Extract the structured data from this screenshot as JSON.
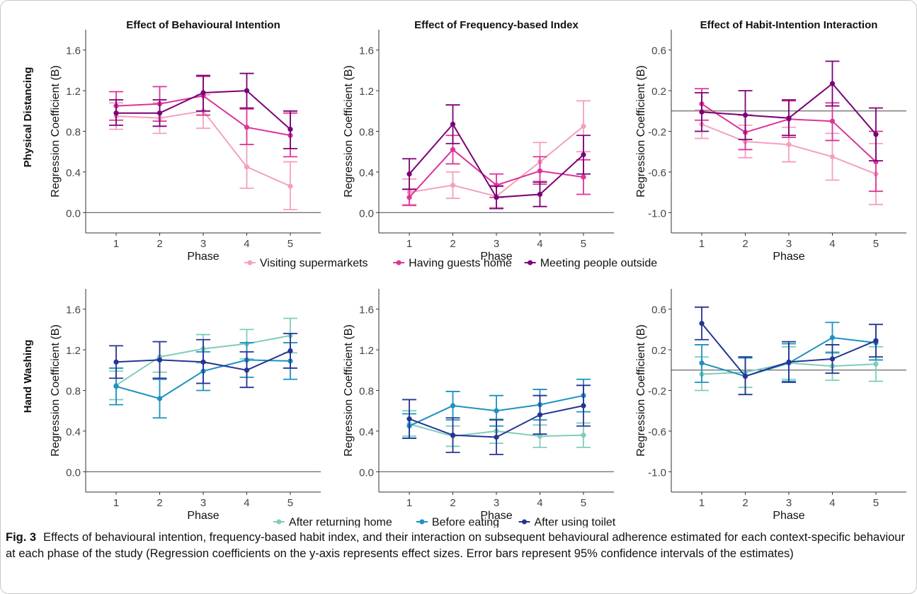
{
  "figure": {
    "label": "Fig. 3",
    "caption": "Effects of behavioural intention, frequency-based habit index, and their interaction on subsequent behavioural adherence estimated for each context-specific behaviour at each phase of the study (Regression coefficients on the y-axis represents effect sizes. Error bars represent 95% confidence intervals of the estimates)"
  },
  "column_titles": [
    "Effect of Behavioural Intention",
    "Effect of Frequency-based Index",
    "Effect of Habit-Intention Interaction"
  ],
  "row_titles": [
    "Physical Distancing",
    "Hand Washing"
  ],
  "legends": [
    {
      "items": [
        {
          "label": "Visiting supermarkets",
          "color": "#f4a0bf"
        },
        {
          "label": "Having guests home",
          "color": "#dd3497"
        },
        {
          "label": "Meeting people outside",
          "color": "#7a0177"
        }
      ]
    },
    {
      "items": [
        {
          "label": "After returning home",
          "color": "#7fcdbb"
        },
        {
          "label": "Before eating",
          "color": "#1d91c0"
        },
        {
          "label": "After using toilet",
          "color": "#253494"
        }
      ]
    }
  ],
  "chart_data": [
    {
      "type": "line",
      "title": "Effect of Behavioural Intention",
      "row": "Physical Distancing",
      "xlabel": "Phase",
      "ylabel": "Regression Coefficient (B)",
      "x": [
        1,
        2,
        3,
        4,
        5
      ],
      "xlim": [
        0.3,
        5.7
      ],
      "ylim": [
        -0.2,
        1.8
      ],
      "yticks": [
        0.0,
        0.4,
        0.8,
        1.2,
        1.6
      ],
      "ytick_labels": [
        "0.0",
        "0.4",
        "0.8",
        "1.2",
        "1.6"
      ],
      "ref_line": 0.0,
      "series": [
        {
          "name": "Visiting supermarkets",
          "color": "#f4a0bf",
          "values": [
            0.95,
            0.93,
            1.0,
            0.45,
            0.26
          ],
          "lower": [
            0.82,
            0.78,
            0.83,
            0.24,
            0.03
          ],
          "upper": [
            1.08,
            1.08,
            1.16,
            0.67,
            0.5
          ]
        },
        {
          "name": "Having guests home",
          "color": "#dd3497",
          "values": [
            1.05,
            1.07,
            1.15,
            0.84,
            0.76
          ],
          "lower": [
            0.91,
            0.9,
            0.96,
            0.67,
            0.55
          ],
          "upper": [
            1.19,
            1.24,
            1.34,
            1.02,
            0.98
          ]
        },
        {
          "name": "Meeting people outside",
          "color": "#7a0177",
          "values": [
            0.98,
            0.98,
            1.18,
            1.2,
            0.82
          ],
          "lower": [
            0.86,
            0.85,
            1.0,
            1.03,
            0.63
          ],
          "upper": [
            1.11,
            1.11,
            1.35,
            1.37,
            1.0
          ]
        }
      ]
    },
    {
      "type": "line",
      "title": "Effect of Frequency-based Index",
      "row": "Physical Distancing",
      "xlabel": "Phase",
      "ylabel": "Regression Coefficient (B)",
      "x": [
        1,
        2,
        3,
        4,
        5
      ],
      "xlim": [
        0.3,
        5.7
      ],
      "ylim": [
        -0.2,
        1.8
      ],
      "yticks": [
        0.0,
        0.4,
        0.8,
        1.2,
        1.6
      ],
      "ytick_labels": [
        "0.0",
        "0.4",
        "0.8",
        "1.2",
        "1.6"
      ],
      "ref_line": 0.0,
      "series": [
        {
          "name": "Visiting supermarkets",
          "color": "#f4a0bf",
          "values": [
            0.2,
            0.27,
            0.16,
            0.5,
            0.85
          ],
          "lower": [
            0.08,
            0.14,
            0.05,
            0.31,
            0.6
          ],
          "upper": [
            0.33,
            0.4,
            0.27,
            0.69,
            1.1
          ]
        },
        {
          "name": "Having guests home",
          "color": "#dd3497",
          "values": [
            0.15,
            0.62,
            0.27,
            0.41,
            0.35
          ],
          "lower": [
            0.07,
            0.48,
            0.15,
            0.28,
            0.18
          ],
          "upper": [
            0.23,
            0.76,
            0.38,
            0.55,
            0.52
          ]
        },
        {
          "name": "Meeting people outside",
          "color": "#7a0177",
          "values": [
            0.38,
            0.87,
            0.15,
            0.18,
            0.57
          ],
          "lower": [
            0.23,
            0.68,
            0.04,
            0.06,
            0.38
          ],
          "upper": [
            0.53,
            1.06,
            0.26,
            0.3,
            0.76
          ]
        }
      ]
    },
    {
      "type": "line",
      "title": "Effect of Habit-Intention Interaction",
      "row": "Physical Distancing",
      "xlabel": "Phase",
      "ylabel": "Regression Coefficient (B)",
      "x": [
        1,
        2,
        3,
        4,
        5
      ],
      "xlim": [
        0.3,
        5.7
      ],
      "ylim": [
        -1.2,
        0.8
      ],
      "yticks": [
        -1.0,
        -0.6,
        -0.2,
        0.2,
        0.6
      ],
      "ytick_labels": [
        "-1.0",
        "-0.6",
        "-0.2",
        "0.2",
        "0.6"
      ],
      "ref_line": 0.0,
      "series": [
        {
          "name": "Visiting supermarkets",
          "color": "#f4a0bf",
          "values": [
            -0.13,
            -0.3,
            -0.33,
            -0.45,
            -0.62
          ],
          "lower": [
            -0.27,
            -0.46,
            -0.5,
            -0.68,
            -0.92
          ],
          "upper": [
            0.01,
            -0.14,
            -0.16,
            -0.22,
            -0.32
          ]
        },
        {
          "name": "Having guests home",
          "color": "#dd3497",
          "values": [
            0.07,
            -0.21,
            -0.08,
            -0.1,
            -0.5
          ],
          "lower": [
            -0.09,
            -0.38,
            -0.26,
            -0.29,
            -0.79
          ],
          "upper": [
            0.22,
            -0.04,
            0.1,
            0.08,
            -0.2
          ]
        },
        {
          "name": "Meeting people outside",
          "color": "#7a0177",
          "values": [
            -0.01,
            -0.04,
            -0.07,
            0.27,
            -0.23
          ],
          "lower": [
            -0.2,
            -0.28,
            -0.24,
            0.05,
            -0.49
          ],
          "upper": [
            0.18,
            0.2,
            0.11,
            0.49,
            0.03
          ]
        }
      ]
    },
    {
      "type": "line",
      "title": "Effect of Behavioural Intention",
      "row": "Hand Washing",
      "xlabel": "Phase",
      "ylabel": "Regression Coefficient (B)",
      "x": [
        1,
        2,
        3,
        4,
        5
      ],
      "xlim": [
        0.3,
        5.7
      ],
      "ylim": [
        -0.2,
        1.8
      ],
      "yticks": [
        0.0,
        0.4,
        0.8,
        1.2,
        1.6
      ],
      "ytick_labels": [
        "0.0",
        "0.4",
        "0.8",
        "1.2",
        "1.6"
      ],
      "ref_line": 0.0,
      "series": [
        {
          "name": "After returning home",
          "color": "#7fcdbb",
          "values": [
            0.85,
            1.13,
            1.21,
            1.26,
            1.34
          ],
          "lower": [
            0.71,
            0.98,
            1.07,
            1.11,
            1.17
          ],
          "upper": [
            0.99,
            1.28,
            1.35,
            1.4,
            1.51
          ]
        },
        {
          "name": "Before eating",
          "color": "#1d91c0",
          "values": [
            0.84,
            0.72,
            0.99,
            1.1,
            1.09
          ],
          "lower": [
            0.66,
            0.53,
            0.8,
            0.93,
            0.91
          ],
          "upper": [
            1.02,
            0.91,
            1.18,
            1.27,
            1.27
          ]
        },
        {
          "name": "After using toilet",
          "color": "#253494",
          "values": [
            1.08,
            1.1,
            1.08,
            1.0,
            1.19
          ],
          "lower": [
            0.92,
            0.92,
            0.87,
            0.83,
            1.02
          ],
          "upper": [
            1.24,
            1.28,
            1.3,
            1.18,
            1.36
          ]
        }
      ]
    },
    {
      "type": "line",
      "title": "Effect of Frequency-based Index",
      "row": "Hand Washing",
      "xlabel": "Phase",
      "ylabel": "Regression Coefficient (B)",
      "x": [
        1,
        2,
        3,
        4,
        5
      ],
      "xlim": [
        0.3,
        5.7
      ],
      "ylim": [
        -0.2,
        1.8
      ],
      "yticks": [
        0.0,
        0.4,
        0.8,
        1.2,
        1.6
      ],
      "ytick_labels": [
        "0.0",
        "0.4",
        "0.8",
        "1.2",
        "1.6"
      ],
      "ref_line": 0.0,
      "series": [
        {
          "name": "After returning home",
          "color": "#7fcdbb",
          "values": [
            0.47,
            0.35,
            0.4,
            0.35,
            0.36
          ],
          "lower": [
            0.35,
            0.25,
            0.28,
            0.24,
            0.24
          ],
          "upper": [
            0.6,
            0.45,
            0.52,
            0.46,
            0.48
          ]
        },
        {
          "name": "Before eating",
          "color": "#1d91c0",
          "values": [
            0.45,
            0.65,
            0.6,
            0.66,
            0.75
          ],
          "lower": [
            0.33,
            0.51,
            0.45,
            0.51,
            0.59
          ],
          "upper": [
            0.57,
            0.79,
            0.75,
            0.81,
            0.91
          ]
        },
        {
          "name": "After using toilet",
          "color": "#253494",
          "values": [
            0.52,
            0.36,
            0.34,
            0.56,
            0.65
          ],
          "lower": [
            0.33,
            0.19,
            0.17,
            0.37,
            0.45
          ],
          "upper": [
            0.71,
            0.53,
            0.51,
            0.75,
            0.85
          ]
        }
      ]
    },
    {
      "type": "line",
      "title": "Effect of Habit-Intention Interaction",
      "row": "Hand Washing",
      "xlabel": "Phase",
      "ylabel": "Regression Coefficient (B)",
      "x": [
        1,
        2,
        3,
        4,
        5
      ],
      "xlim": [
        0.3,
        5.7
      ],
      "ylim": [
        -1.2,
        0.8
      ],
      "yticks": [
        -1.0,
        -0.6,
        -0.2,
        0.2,
        0.6
      ],
      "ytick_labels": [
        "-1.0",
        "-0.6",
        "-0.2",
        "0.2",
        "0.6"
      ],
      "ref_line": 0.0,
      "series": [
        {
          "name": "After returning home",
          "color": "#7fcdbb",
          "values": [
            -0.04,
            -0.02,
            0.07,
            0.04,
            0.06
          ],
          "lower": [
            -0.2,
            -0.17,
            -0.09,
            -0.1,
            -0.11
          ],
          "upper": [
            0.13,
            0.13,
            0.23,
            0.18,
            0.23
          ]
        },
        {
          "name": "Before eating",
          "color": "#1d91c0",
          "values": [
            0.07,
            -0.06,
            0.07,
            0.32,
            0.27
          ],
          "lower": [
            -0.12,
            -0.24,
            -0.11,
            0.17,
            0.1
          ],
          "upper": [
            0.25,
            0.12,
            0.26,
            0.47,
            0.45
          ]
        },
        {
          "name": "After using toilet",
          "color": "#253494",
          "values": [
            0.46,
            -0.06,
            0.08,
            0.11,
            0.29
          ],
          "lower": [
            0.3,
            -0.24,
            -0.12,
            -0.03,
            0.13
          ],
          "upper": [
            0.62,
            0.13,
            0.28,
            0.25,
            0.45
          ]
        }
      ]
    }
  ]
}
